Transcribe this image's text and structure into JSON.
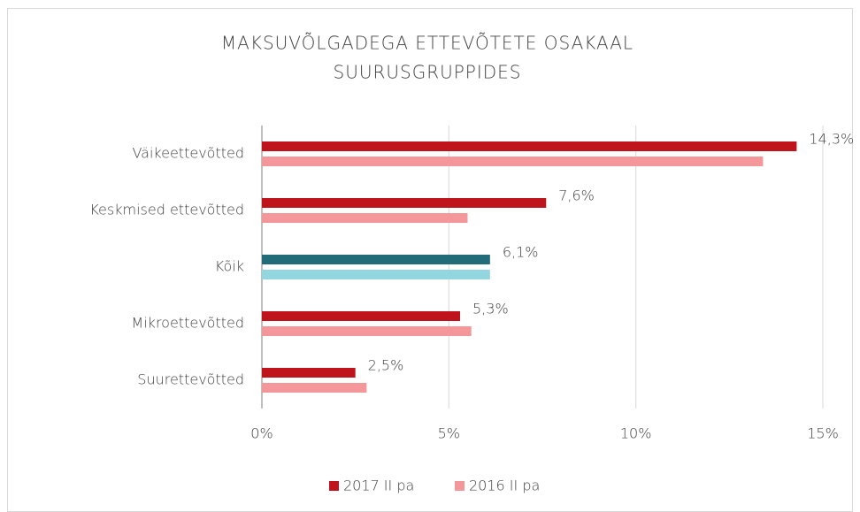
{
  "chart_data": {
    "type": "hbar",
    "title": [
      "MAKSUVÕLGADEGA ETTEVÕTETE OSAKAAL",
      "SUURUSGRUPPIDES"
    ],
    "categories": [
      "Väikeettevõtted",
      "Keskmised ettevõtted",
      "Kõik",
      "Mikroettevõtted",
      "Suurettevõtted"
    ],
    "series": [
      {
        "name": "2017 II pa",
        "color": "#c0141c",
        "colors": [
          "#c0141c",
          "#c0141c",
          "#226b78",
          "#c0141c",
          "#c0141c"
        ],
        "values": [
          14.3,
          7.6,
          6.1,
          5.3,
          2.5
        ],
        "value_labels": [
          "14,3%",
          "7,6%",
          "6,1%",
          "5,3%",
          "2,5%"
        ],
        "label_bold": [
          false,
          false,
          true,
          false,
          false
        ]
      },
      {
        "name": "2016 II pa",
        "color": "#f4979a",
        "colors": [
          "#f4979a",
          "#f4979a",
          "#93d6e0",
          "#f4979a",
          "#f4979a"
        ],
        "values": [
          13.4,
          5.5,
          6.1,
          5.6,
          2.8
        ]
      }
    ],
    "xlim": [
      0,
      15
    ],
    "xticks": [
      {
        "value": 0,
        "label": "0%"
      },
      {
        "value": 5,
        "label": "5%"
      },
      {
        "value": 10,
        "label": "10%"
      },
      {
        "value": 15,
        "label": "15%"
      }
    ],
    "grid": true,
    "legend": "bottom"
  }
}
